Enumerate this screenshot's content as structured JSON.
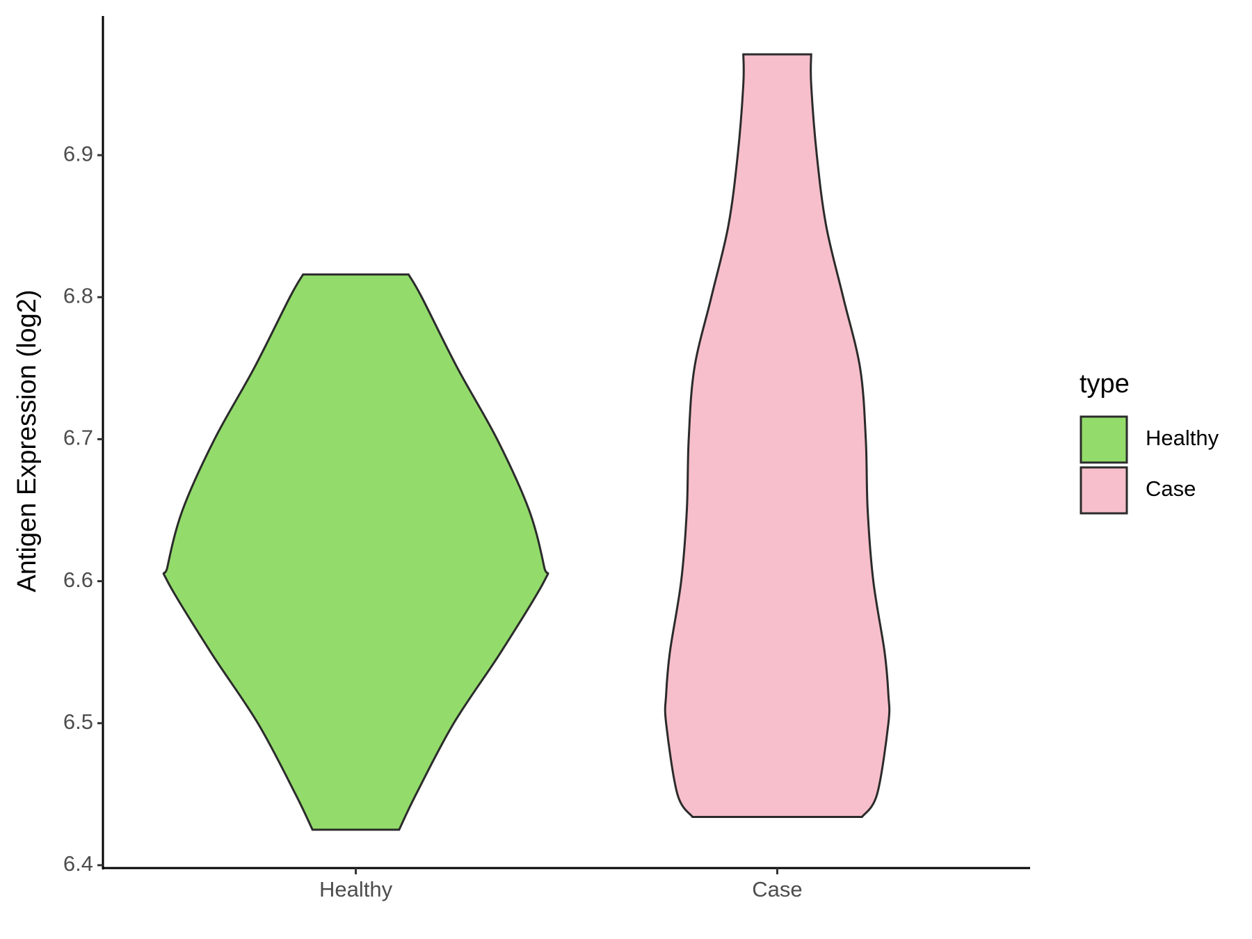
{
  "chart_data": {
    "type": "violin",
    "y_label": "Antigen Expression (log2)",
    "categories": [
      "Healthy",
      "Case"
    ],
    "legend_title": "type",
    "legend_position": "right",
    "ylim": [
      6.398,
      6.998
    ],
    "yticks": [
      6.4,
      6.5,
      6.6,
      6.7,
      6.8,
      6.9
    ],
    "grid": false,
    "series": [
      {
        "name": "Healthy",
        "color": "#93dc6b",
        "y": [
          6.425,
          6.45,
          6.5,
          6.55,
          6.6,
          6.61,
          6.65,
          6.7,
          6.75,
          6.8,
          6.816
        ],
        "width": [
          0.23,
          0.32,
          0.52,
          0.77,
          1.0,
          1.0,
          0.92,
          0.75,
          0.54,
          0.35,
          0.28
        ]
      },
      {
        "name": "Case",
        "color": "#f7bfcb",
        "y": [
          6.434,
          6.45,
          6.5,
          6.52,
          6.55,
          6.6,
          6.65,
          6.7,
          6.75,
          6.8,
          6.85,
          6.9,
          6.95,
          6.971
        ],
        "width": [
          0.45,
          0.53,
          0.59,
          0.59,
          0.57,
          0.51,
          0.48,
          0.47,
          0.44,
          0.35,
          0.26,
          0.21,
          0.18,
          0.18
        ]
      }
    ]
  }
}
